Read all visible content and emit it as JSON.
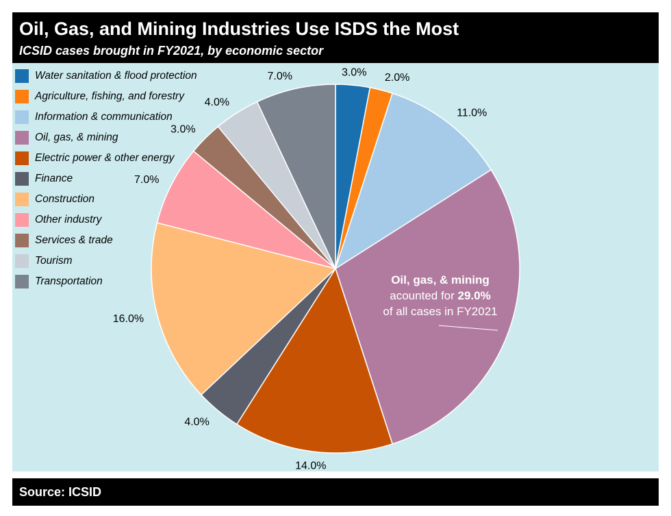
{
  "header": {
    "title": "Oil, Gas, and Mining Industries Use ISDS the Most",
    "subtitle": "ICSID cases brought in FY2021, by economic sector"
  },
  "footer": {
    "source": "Source: ICSID"
  },
  "colors": {
    "background": "#cdebef",
    "header_bg": "#000000"
  },
  "chart_data": {
    "type": "pie",
    "title": "Oil, Gas, and Mining Industries Use ISDS the Most",
    "subtitle": "ICSID cases brought in FY2021, by economic sector",
    "legend_position": "top-left",
    "slices": [
      {
        "label": "Water sanitation & flood protection",
        "value": 3.0,
        "value_label": "3.0%",
        "color": "#1a6fae"
      },
      {
        "label": "Agriculture, fishing, and forestry",
        "value": 2.0,
        "value_label": "2.0%",
        "color": "#fd7f0f"
      },
      {
        "label": "Information & communication",
        "value": 11.0,
        "value_label": "11.0%",
        "color": "#a6cbe8"
      },
      {
        "label": "Oil, gas, & mining",
        "value": 29.0,
        "value_label": "",
        "color": "#b17b9f"
      },
      {
        "label": "Electric power & other energy",
        "value": 14.0,
        "value_label": "14.0%",
        "color": "#c85203"
      },
      {
        "label": "Finance",
        "value": 4.0,
        "value_label": "4.0%",
        "color": "#5a5f6b"
      },
      {
        "label": "Construction",
        "value": 16.0,
        "value_label": "16.0%",
        "color": "#ffbb78"
      },
      {
        "label": "Other industry",
        "value": 7.0,
        "value_label": "7.0%",
        "color": "#fe9aa3"
      },
      {
        "label": "Services & trade",
        "value": 3.0,
        "value_label": "3.0%",
        "color": "#9b725f"
      },
      {
        "label": "Tourism",
        "value": 4.0,
        "value_label": "4.0%",
        "color": "#c8cfd7"
      },
      {
        "label": "Transportation",
        "value": 7.0,
        "value_label": "7.0%",
        "color": "#7b838e"
      }
    ],
    "annotation": {
      "line1": "Oil, gas, & mining",
      "line2_prefix": "acounted for ",
      "line2_value": "29.0%",
      "line3": "of all cases in FY2021"
    }
  }
}
